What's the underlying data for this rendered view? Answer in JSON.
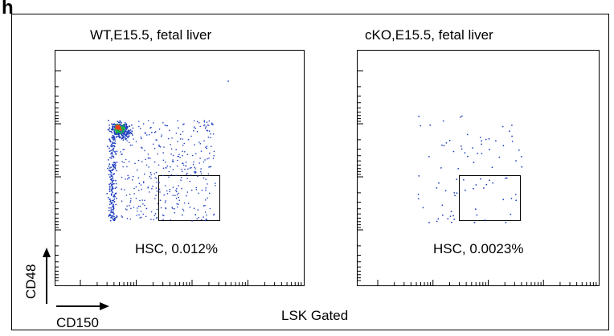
{
  "panel_letter": "h",
  "footer_label": "LSK Gated",
  "x_axis_label": "CD150",
  "y_axis_label": "CD48",
  "colors": {
    "axis": "#000000",
    "dot_low": "#1f3fbf",
    "dot_mid": "#19b34a",
    "dot_high": "#ff3b1f"
  },
  "chart_data": [
    {
      "type": "scatter",
      "title": "WT,E15.5, fetal liver",
      "xlabel": "CD150",
      "ylabel": "CD48",
      "gate": {
        "label": "HSC, 0.012%",
        "value_percent": 0.012
      },
      "density_hotspot": "top-left"
    },
    {
      "type": "scatter",
      "title": "cKO,E15.5, fetal liver",
      "xlabel": "CD150",
      "ylabel": "CD48",
      "gate": {
        "label": "HSC, 0.0023%",
        "value_percent": 0.0023
      },
      "density_hotspot": "none"
    }
  ]
}
